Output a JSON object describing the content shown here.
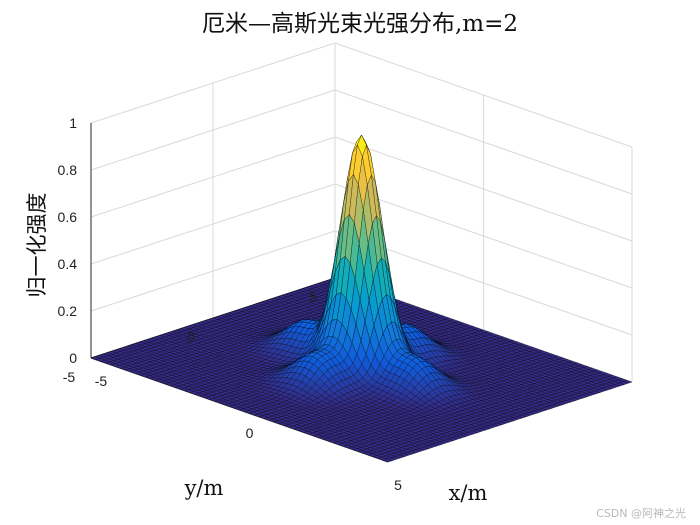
{
  "chart_data": {
    "type": "surface",
    "title": "厄米—高斯光束光强分布,m=2",
    "xlabel": "x/m",
    "ylabel": "y/m",
    "zlabel": "归一化强度",
    "xlim": [
      -5,
      5
    ],
    "ylim": [
      -5,
      5
    ],
    "zlim": [
      0,
      1
    ],
    "x_ticks": [
      "-5",
      "0",
      "5"
    ],
    "y_ticks": [
      "-5",
      "0",
      "5"
    ],
    "z_ticks": [
      "0",
      "0.2",
      "0.4",
      "0.6",
      "0.8",
      "1"
    ],
    "colormap": "parula",
    "grid": true,
    "peak": {
      "x": 0,
      "y": 0,
      "value": 1.0
    },
    "side_lobes": [
      {
        "x": 0,
        "y": -1.8,
        "value": 0.13
      },
      {
        "x": 0,
        "y": 1.8,
        "value": 0.13
      },
      {
        "x": -1.8,
        "y": 0,
        "value": 0.13
      },
      {
        "x": 1.8,
        "y": 0,
        "value": 0.13
      }
    ]
  },
  "watermark": "CSDN @阿神之光"
}
